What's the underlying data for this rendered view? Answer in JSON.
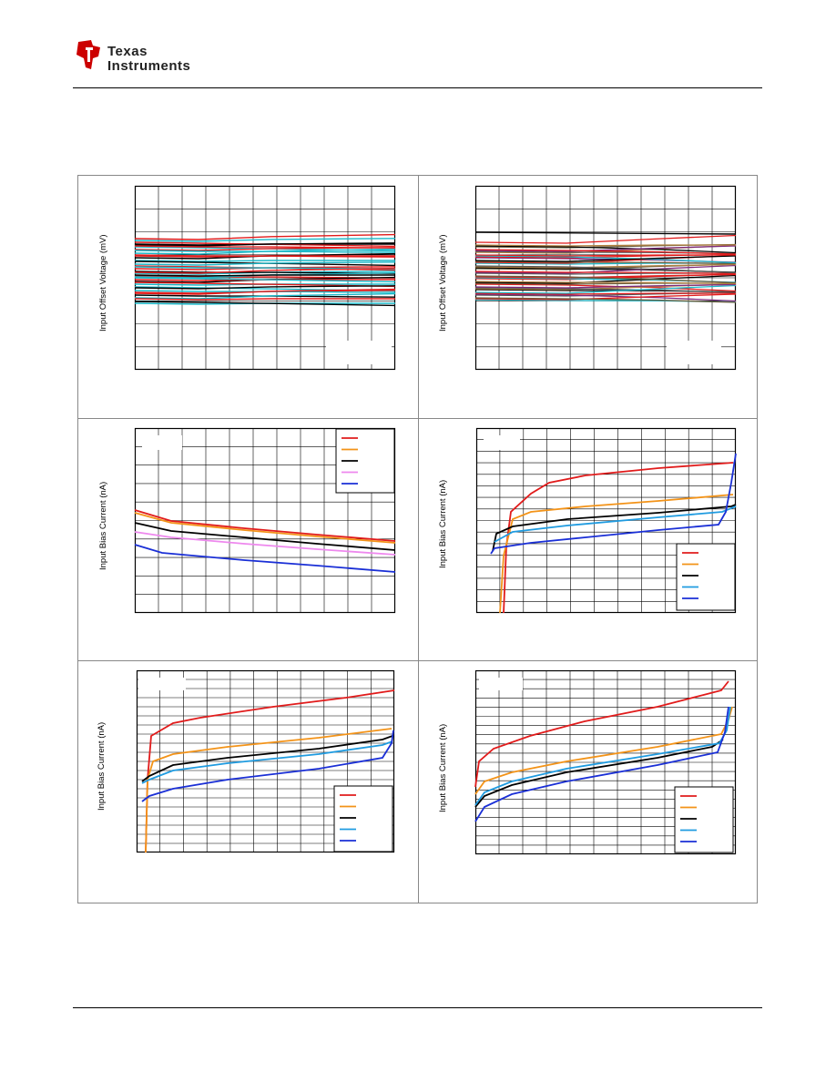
{
  "header": {
    "logo_line1": "Texas",
    "logo_line2": "Instruments",
    "logo_color": "#cc0000"
  },
  "panels": [
    {
      "id": "offset-vs-temp-1",
      "ylabel": "Input Offset Voltage (mV)"
    },
    {
      "id": "offset-vs-temp-2",
      "ylabel": "Input Offset Voltage (mV)"
    },
    {
      "id": "bias-vs-temp",
      "ylabel": "Input Bias Current (nA)"
    },
    {
      "id": "bias-vs-vcm-1",
      "ylabel": "Input Bias Current (nA)"
    },
    {
      "id": "bias-vs-vcm-2",
      "ylabel": "Input Bias Current (nA)"
    },
    {
      "id": "bias-vs-vcm-3",
      "ylabel": "Input Bias Current (nA)"
    }
  ],
  "colors": {
    "red": "#e11b1b",
    "orange": "#f39318",
    "black": "#000000",
    "pink": "#ee88ee",
    "cyan": "#1f9be0",
    "blue": "#1a2fd6",
    "teal": "#19b7c7"
  }
}
